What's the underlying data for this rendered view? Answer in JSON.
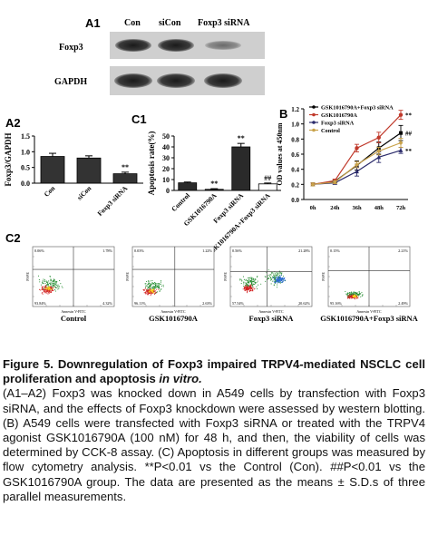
{
  "figure": {
    "a1": {
      "label": "A1",
      "lanes": [
        "Con",
        "siCon",
        "Foxp3 siRNA"
      ],
      "rows": [
        "Foxp3",
        "GAPDH"
      ]
    },
    "a2": {
      "label": "A2",
      "chart_data": {
        "type": "bar",
        "categories": [
          "Con",
          "siCon",
          "Foxp3 siRNA"
        ],
        "values": [
          0.85,
          0.8,
          0.3
        ],
        "errors": [
          0.1,
          0.07,
          0.05
        ],
        "ylabel": "Foxp3/GAPDH",
        "ylim": [
          0,
          1.5
        ],
        "yticks": [
          "0.0",
          "0.5",
          "1.0",
          "1.5"
        ],
        "annotations": [
          {
            "category": "Foxp3 siRNA",
            "text": "**"
          }
        ]
      }
    },
    "c1": {
      "label": "C1",
      "chart_data": {
        "type": "bar",
        "categories": [
          "Control",
          "GSK1016790A",
          "Foxp3 siRNA",
          "GSK1016790A+Foxp3 siRNA"
        ],
        "values": [
          7,
          1,
          40,
          6
        ],
        "errors": [
          0.7,
          0.6,
          3.2,
          0.8
        ],
        "ylabel": "Apoptosis rate(%)",
        "ylim": [
          0,
          50
        ],
        "yticks": [
          "0",
          "10",
          "20",
          "30",
          "40",
          "50"
        ],
        "annotations": [
          {
            "category": "GSK1016790A",
            "text": "**"
          },
          {
            "category": "Foxp3 siRNA",
            "text": "**"
          },
          {
            "category": "GSK1016790A+Foxp3 siRNA",
            "text": "##"
          }
        ]
      }
    },
    "b": {
      "label": "B",
      "chart_data": {
        "type": "line",
        "x": [
          "0h",
          "24h",
          "36h",
          "48h",
          "72h"
        ],
        "series": [
          {
            "name": "GSK1016790A+Foxp3 siRNA",
            "values": [
              0.2,
              0.24,
              0.45,
              0.68,
              0.88
            ],
            "errors": [
              0.02,
              0.02,
              0.06,
              0.08,
              0.1
            ],
            "color": "#000000",
            "marker": "square"
          },
          {
            "name": "GSK1016790A",
            "values": [
              0.2,
              0.25,
              0.68,
              0.82,
              1.12
            ],
            "errors": [
              0.02,
              0.02,
              0.05,
              0.07,
              0.06
            ],
            "color": "#c0392b",
            "marker": "circle"
          },
          {
            "name": "Foxp3 siRNA",
            "values": [
              0.2,
              0.22,
              0.37,
              0.56,
              0.65
            ],
            "errors": [
              0.02,
              0.02,
              0.06,
              0.07,
              0.04
            ],
            "color": "#2b2b6b",
            "marker": "triangle"
          },
          {
            "name": "Control",
            "values": [
              0.2,
              0.23,
              0.46,
              0.64,
              0.75
            ],
            "errors": [
              0.02,
              0.02,
              0.04,
              0.05,
              0.06
            ],
            "color": "#c8a24a",
            "marker": "diamond"
          }
        ],
        "ylabel": "OD values at 450nm",
        "ylim": [
          0,
          1.2
        ],
        "yticks": [
          "0.0",
          "0.2",
          "0.4",
          "0.6",
          "0.8",
          "1.0",
          "1.2"
        ],
        "annotations": [
          "**",
          "##",
          "**"
        ]
      }
    },
    "c2": {
      "label": "C2",
      "plots": [
        {
          "label": "Control",
          "quadrants": [
            "0.06%",
            "1.78%",
            "93.84%",
            "4.32%"
          ]
        },
        {
          "label": "GSK1016790A",
          "quadrants": [
            "0.03%",
            "1.22%",
            "96.11%",
            "2.63%"
          ]
        },
        {
          "label": "Foxp3 siRNA",
          "quadrants": [
            "0.56%",
            "21.28%",
            "57.54%",
            "20.62%"
          ]
        },
        {
          "label": "GSK1016790A+Foxp3 siRNA",
          "quadrants": [
            "0.15%",
            "2.21%",
            "95.16%",
            "2.49%"
          ]
        }
      ],
      "axis_x": "Annexin V-FITC",
      "axis_y": "PI-PE"
    }
  },
  "caption": {
    "title": "Figure 5. Downregulation of Foxp3 impaired TRPV4-mediated NSCLC cell proliferation and apoptosis",
    "title_italic": "in vitro.",
    "body": "(A1–A2) Foxp3 was knocked down in A549 cells by transfection with Foxp3 siRNA, and the effects of Foxp3 knockdown were assessed by western blotting. (B) A549 cells were transfected with Foxp3 siRNA or treated with the TRPV4 agonist GSK1016790A (100 nM) for 48 h, and then, the viability of cells was determined by CCK-8 assay. (C) Apoptosis in different groups was measured by flow cytometry analysis. **P<0.01 vs the Control (Con). ##P<0.01 vs the GSK1016790A group. The data are presented as the means ± S.D.s of three parallel measurements."
  }
}
